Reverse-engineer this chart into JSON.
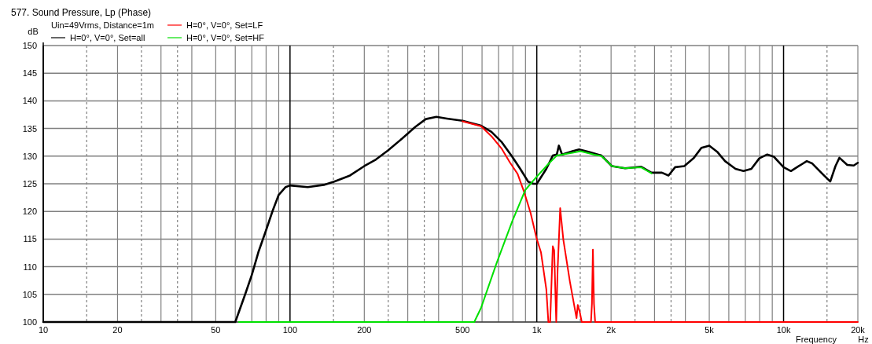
{
  "chart_data": {
    "type": "line",
    "title": "577. Sound Pressure, Lp (Phase)",
    "xlabel": "Frequency",
    "ylabel": "dB",
    "annotations": [
      "Uin=49Vrms, Distance=1m",
      "Hz"
    ],
    "log": "x",
    "grid": true,
    "legend": "top left",
    "marker": "none",
    "line_style": "solid",
    "xlim": [
      10,
      20000
    ],
    "ylim": [
      100,
      150
    ],
    "xticks": [
      10,
      {
        "value": 15,
        "label": null
      },
      20,
      {
        "value": 25,
        "label": null
      },
      {
        "value": 30,
        "label": null
      },
      {
        "value": 35,
        "label": null
      },
      {
        "value": 40,
        "label": null
      },
      50,
      {
        "value": 60,
        "label": null
      },
      {
        "value": 70,
        "label": null
      },
      {
        "value": 80,
        "label": null
      },
      {
        "value": 90,
        "label": null
      },
      100,
      {
        "value": 150,
        "label": null
      },
      200,
      {
        "value": 250,
        "label": null
      },
      {
        "value": 300,
        "label": null
      },
      {
        "value": 350,
        "label": null
      },
      {
        "value": 400,
        "label": null
      },
      500,
      {
        "value": 600,
        "label": null
      },
      {
        "value": 700,
        "label": null
      },
      {
        "value": 800,
        "label": null
      },
      {
        "value": 900,
        "label": null
      },
      {
        "value": 1000,
        "label": "1k"
      },
      {
        "value": 1500,
        "label": null
      },
      {
        "value": 2000,
        "label": "2k"
      },
      {
        "value": 2500,
        "label": null
      },
      {
        "value": 3000,
        "label": null
      },
      {
        "value": 3500,
        "label": null
      },
      {
        "value": 4000,
        "label": null
      },
      {
        "value": 5000,
        "label": "5k"
      },
      {
        "value": 6000,
        "label": null
      },
      {
        "value": 7000,
        "label": null
      },
      {
        "value": 8000,
        "label": null
      },
      {
        "value": 9000,
        "label": null
      },
      {
        "value": 10000,
        "label": "10k"
      },
      {
        "value": 15000,
        "label": null
      },
      {
        "value": 20000,
        "label": "20k"
      }
    ],
    "yticks": [
      100,
      105,
      110,
      115,
      120,
      125,
      130,
      135,
      140,
      145,
      150
    ],
    "series": [
      {
        "name": "H=0°, V=0°, Set=all",
        "color": "#000000",
        "x": [
          10,
          60,
          65.8,
          70,
          74.4,
          79.7,
          85,
          90,
          96,
          100,
          118,
          137,
          151,
          175,
          200,
          223,
          249,
          285,
          322,
          355,
          392,
          432,
          500,
          595,
          655,
          722,
          795,
          857,
          922,
          968,
          1000,
          1093,
          1161,
          1205,
          1229,
          1266,
          1396,
          1484,
          1618,
          1829,
          2016,
          2280,
          2642,
          2917,
          3215,
          3418,
          3636,
          3960,
          4315,
          4646,
          5000,
          5380,
          5792,
          6387,
          6880,
          7405,
          7973,
          8587,
          9132,
          10000,
          10710,
          11530,
          12420,
          13040,
          14370,
          15460,
          16230,
          16840,
          18120,
          19250,
          20000
        ],
        "values": [
          100,
          100,
          105,
          108.5,
          112.6,
          116.4,
          120.1,
          123,
          124.4,
          124.7,
          124.4,
          124.8,
          125.4,
          126.5,
          128.2,
          129.4,
          131,
          133.2,
          135.3,
          136.7,
          137.1,
          136.8,
          136.4,
          135.5,
          134.4,
          132.5,
          129.9,
          127.7,
          125.4,
          125,
          125,
          127.7,
          130.1,
          130.3,
          131.9,
          130.3,
          130.9,
          131.2,
          130.8,
          130.1,
          128.2,
          127.8,
          128.1,
          127,
          127,
          126.5,
          128,
          128.2,
          129.6,
          131.5,
          131.9,
          130.8,
          129.1,
          127.7,
          127.3,
          127.7,
          129.6,
          130.3,
          129.9,
          128,
          127.3,
          128.2,
          129.1,
          128.7,
          126.8,
          125.4,
          128.2,
          129.7,
          128.4,
          128.3,
          128.8
        ]
      },
      {
        "name": "H=0°, V=0°, Set=LF",
        "color": "#ff0000",
        "x": [
          500,
          595,
          655,
          722,
          777,
          836,
          889,
          944,
          1000,
          1040,
          1093,
          1114,
          1133,
          1161,
          1176,
          1199,
          1214,
          1244,
          1281,
          1362,
          1449,
          1466,
          1495,
          1521,
          1658,
          1673,
          1688,
          1705,
          1724,
          20000
        ],
        "values": [
          136.3,
          135.4,
          133.6,
          131.3,
          128.9,
          126.8,
          123.5,
          119.7,
          115,
          112.6,
          105.9,
          100,
          100,
          113.7,
          113,
          100,
          109.2,
          120.6,
          114.9,
          107.3,
          100.7,
          103.1,
          101.7,
          100,
          100,
          103.3,
          113.1,
          103.3,
          100,
          100
        ]
      },
      {
        "name": "H=0°, V=0°, Set=HF",
        "color": "#00e000",
        "x": [
          62,
          558,
          595,
          688,
          795,
          899,
          1000,
          1120,
          1205,
          1396,
          1503,
          1700,
          1829,
          2016,
          2280,
          2642,
          2917
        ],
        "values": [
          100,
          100,
          102.6,
          110.7,
          118.2,
          123.9,
          126.3,
          128.7,
          130.1,
          130.6,
          130.9,
          130.3,
          130,
          128.2,
          127.8,
          128,
          126.9
        ]
      }
    ]
  }
}
